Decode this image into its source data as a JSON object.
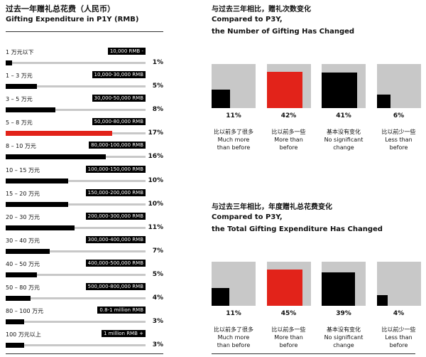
{
  "chart_data": [
    {
      "type": "hbar",
      "title": "过去一年赠礼总花费（人民币）",
      "subtitle": "Gifting Expenditure in P1Y (RMB)",
      "categories": [
        "1 万元以下",
        "1 – 3 万元",
        "3 – 5 万元",
        "5 – 8 万元",
        "8 – 10 万元",
        "10 – 15 万元",
        "15 – 20 万元",
        "20 – 30 万元",
        "30 – 40 万元",
        "40 – 50 万元",
        "50 – 80 万元",
        "80 – 100 万元",
        "100 万元以上"
      ],
      "range_labels": [
        "10,000 RMB -",
        "10,000-30,000 RMB",
        "30,000-50,000 RMB",
        "50,000-80,000 RMB",
        "80,000-100,000 RMB",
        "100,000-150,000 RMB",
        "150,000-200,000 RMB",
        "200,000-300,000 RMB",
        "300,000-400,000 RMB",
        "400,000-500,000 RMB",
        "500,000-800,000 RMB",
        "0.8-1 million RMB",
        "1 million RMB +"
      ],
      "values": [
        1,
        5,
        8,
        17,
        16,
        10,
        10,
        11,
        7,
        5,
        4,
        3,
        3
      ],
      "value_labels": [
        "1%",
        "5%",
        "8%",
        "17%",
        "16%",
        "10%",
        "10%",
        "11%",
        "7%",
        "5%",
        "4%",
        "3%",
        "3%"
      ],
      "colors": [
        "#000000",
        "#000000",
        "#000000",
        "#e2231a",
        "#000000",
        "#000000",
        "#000000",
        "#000000",
        "#000000",
        "#000000",
        "#000000",
        "#000000",
        "#000000"
      ]
    },
    {
      "type": "square",
      "title": [
        "与过去三年相比，赠礼次数变化",
        "Compared to P3Y,",
        "the Number of Gifting Has Changed"
      ],
      "categories": [
        "比以前多了很多",
        "比以前多一些",
        "基本没有变化",
        "比以前少一些"
      ],
      "categories_en": [
        "Much more than before",
        "More than before",
        "No significant change",
        "Less than before"
      ],
      "values": [
        11,
        42,
        41,
        6
      ],
      "value_labels": [
        "11%",
        "42%",
        "41%",
        "6%"
      ],
      "colors": [
        "#000000",
        "#e2231a",
        "#000000",
        "#000000"
      ]
    },
    {
      "type": "square",
      "title": [
        "与过去三年相比，年度赠礼总花费变化",
        "Compared to P3Y,",
        "the Total Gifting Expenditure Has Changed"
      ],
      "categories": [
        "比以前多了很多",
        "比以前多一些",
        "基本没有变化",
        "比以前少一些"
      ],
      "categories_en": [
        "Much more than before",
        "More than before",
        "No significant change",
        "Less than before"
      ],
      "values": [
        11,
        45,
        39,
        4
      ],
      "value_labels": [
        "11%",
        "45%",
        "39%",
        "4%"
      ],
      "colors": [
        "#000000",
        "#e2231a",
        "#000000",
        "#000000"
      ]
    }
  ]
}
